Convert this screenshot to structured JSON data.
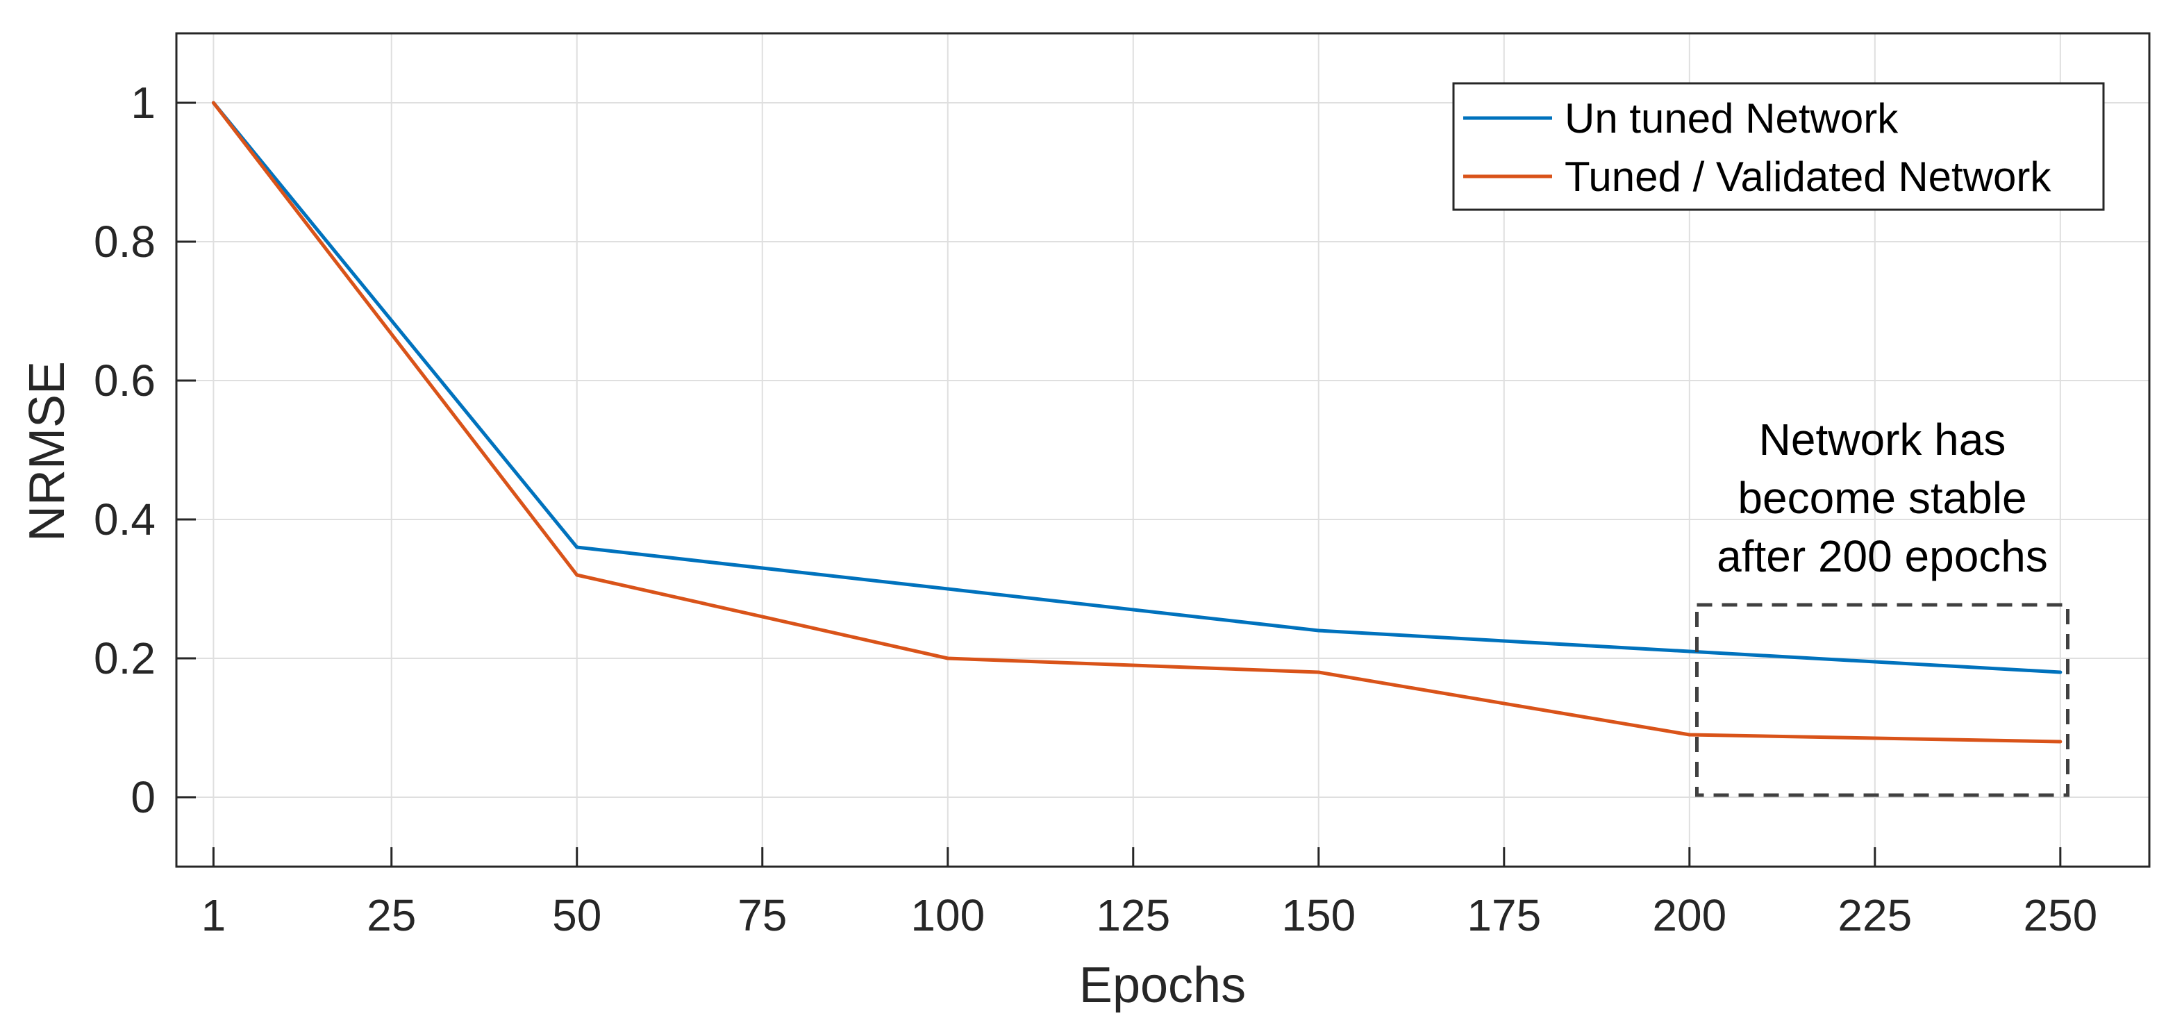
{
  "chart_data": {
    "type": "line",
    "xlabel": "Epochs",
    "ylabel": "NRMSE",
    "x": [
      1,
      50,
      100,
      150,
      200,
      250
    ],
    "x_ticks": [
      1,
      25,
      50,
      75,
      100,
      125,
      150,
      175,
      200,
      225,
      250
    ],
    "y_ticks": [
      0,
      0.2,
      0.4,
      0.6,
      0.8,
      1
    ],
    "y_tick_labels": [
      "0",
      "0.2",
      "0.4",
      "0.6",
      "0.8",
      "1"
    ],
    "xlim": [
      -4,
      262
    ],
    "ylim": [
      -0.1,
      1.1
    ],
    "grid": true,
    "legend_position": "top-right",
    "series": [
      {
        "name": "Un tuned Network",
        "color": "#0072BD",
        "values": [
          1.0,
          0.36,
          0.3,
          0.24,
          0.21,
          0.18
        ]
      },
      {
        "name": "Tuned / Validated Network",
        "color": "#D95319",
        "values": [
          1.0,
          0.32,
          0.2,
          0.18,
          0.09,
          0.08
        ]
      }
    ],
    "annotation": {
      "lines": [
        "Network has",
        "become stable",
        "after 200 epochs"
      ],
      "box_x": [
        201,
        251
      ],
      "box_y": [
        0.003,
        0.277
      ]
    }
  }
}
